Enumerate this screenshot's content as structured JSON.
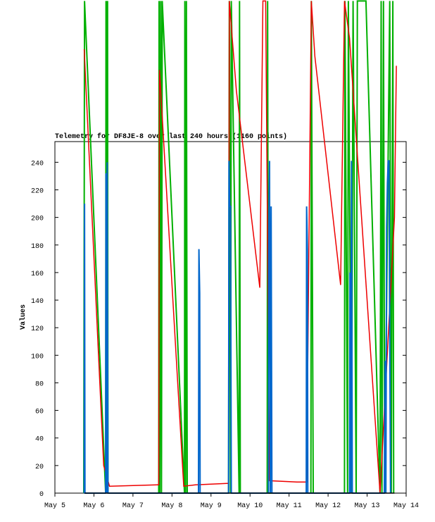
{
  "chart_data": {
    "type": "line",
    "title": "Telemetry for DF8JE-8 over last 240 hours (1160 points)",
    "y_label": "Values",
    "xlim": [
      5,
      14
    ],
    "xticks": [
      {
        "value": 5,
        "label": "May 5"
      },
      {
        "value": 6,
        "label": "May 6"
      },
      {
        "value": 7,
        "label": "May 7"
      },
      {
        "value": 8,
        "label": "May 8"
      },
      {
        "value": 9,
        "label": "May 9"
      },
      {
        "value": 10,
        "label": "May 10"
      },
      {
        "value": 11,
        "label": "May 11"
      },
      {
        "value": 12,
        "label": "May 12"
      },
      {
        "value": 13,
        "label": "May 13"
      },
      {
        "value": 14,
        "label": "May 14"
      }
    ],
    "ylim": [
      0,
      255
    ],
    "yticks": [
      0,
      20,
      40,
      60,
      80,
      100,
      120,
      140,
      160,
      180,
      200,
      220,
      240
    ],
    "series": [
      {
        "color": "#00b000",
        "width": 2,
        "x": [
          5.74,
          5.76,
          6.3,
          6.31,
          6.32,
          6.33,
          6.34,
          6.35,
          6.36,
          7.66,
          7.67,
          7.69,
          7.71,
          7.73,
          7.75,
          8.32,
          8.33,
          8.35,
          8.37,
          8.39,
          9.45,
          9.47,
          9.5,
          9.52,
          9.72,
          9.73,
          9.75,
          10.44,
          10.45,
          10.47,
          11.56,
          11.57,
          11.62,
          12.42,
          12.43,
          12.5,
          12.52,
          12.6,
          12.64,
          12.72,
          12.75,
          12.97,
          13.33,
          13.36,
          13.38,
          13.42,
          13.45,
          13.58,
          13.62,
          13.66,
          13.68
        ],
        "values": [
          0,
          357,
          0,
          357,
          0,
          357,
          0,
          357,
          0,
          0,
          357,
          0,
          357,
          0,
          357,
          0,
          357,
          0,
          357,
          0,
          0,
          357,
          0,
          357,
          0,
          357,
          0,
          0,
          357,
          0,
          0,
          357,
          0,
          0,
          357,
          0,
          357,
          0,
          357,
          0,
          357,
          357,
          0,
          357,
          0,
          357,
          0,
          357,
          0,
          357,
          0
        ]
      },
      {
        "color": "#ee0000",
        "width": 1.5,
        "x": [
          5.75,
          6.25,
          6.4,
          7.62,
          7.66,
          7.68,
          8.3,
          8.6,
          9.4,
          9.45,
          9.47,
          9.65,
          10.25,
          10.33,
          10.4,
          10.5,
          11.2,
          11.45,
          11.57,
          11.66,
          12.32,
          12.42,
          12.55,
          13.33,
          13.7,
          13.75
        ],
        "values": [
          322,
          20,
          5,
          6,
          6,
          307,
          5,
          6,
          7,
          7,
          357,
          292,
          149,
          357,
          357,
          9,
          8,
          8,
          357,
          317,
          151,
          357,
          330,
          0,
          200,
          310
        ]
      },
      {
        "color": "#0066cc",
        "width": 2,
        "x": [
          5.75,
          5.76,
          5.77,
          6.3,
          6.31,
          6.33,
          6.34,
          6.36,
          8.68,
          8.69,
          8.71,
          8.72,
          9.45,
          9.46,
          9.48,
          9.5,
          9.52,
          10.47,
          10.48,
          10.5,
          10.52,
          10.54,
          10.56,
          11.44,
          11.45,
          11.47,
          11.48,
          12.55,
          12.56,
          12.58,
          12.6,
          12.62,
          13.44,
          13.46,
          13.48,
          13.5,
          13.52,
          13.54,
          13.56,
          13.6
        ],
        "values": [
          0,
          210,
          0,
          0,
          232,
          0,
          240,
          0,
          0,
          177,
          145,
          0,
          0,
          241,
          208,
          208,
          0,
          0,
          177,
          241,
          0,
          208,
          0,
          0,
          208,
          177,
          0,
          0,
          160,
          0,
          241,
          0,
          0,
          96,
          0,
          193,
          225,
          241,
          241,
          0
        ]
      },
      {
        "color": "#000000",
        "width": 1.5,
        "x": [
          5.76,
          13.7
        ],
        "values": [
          0,
          0
        ]
      }
    ]
  }
}
